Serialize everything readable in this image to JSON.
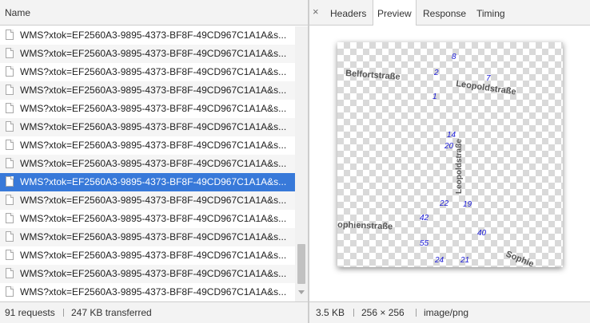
{
  "requests": {
    "header": "Name",
    "rows": [
      {
        "name": "WMS?xtok=EF2560A3-9895-4373-BF8F-49CD967C1A1A&s..."
      },
      {
        "name": "WMS?xtok=EF2560A3-9895-4373-BF8F-49CD967C1A1A&s..."
      },
      {
        "name": "WMS?xtok=EF2560A3-9895-4373-BF8F-49CD967C1A1A&s..."
      },
      {
        "name": "WMS?xtok=EF2560A3-9895-4373-BF8F-49CD967C1A1A&s..."
      },
      {
        "name": "WMS?xtok=EF2560A3-9895-4373-BF8F-49CD967C1A1A&s..."
      },
      {
        "name": "WMS?xtok=EF2560A3-9895-4373-BF8F-49CD967C1A1A&s..."
      },
      {
        "name": "WMS?xtok=EF2560A3-9895-4373-BF8F-49CD967C1A1A&s..."
      },
      {
        "name": "WMS?xtok=EF2560A3-9895-4373-BF8F-49CD967C1A1A&s..."
      },
      {
        "name": "WMS?xtok=EF2560A3-9895-4373-BF8F-49CD967C1A1A&s..."
      },
      {
        "name": "WMS?xtok=EF2560A3-9895-4373-BF8F-49CD967C1A1A&s..."
      },
      {
        "name": "WMS?xtok=EF2560A3-9895-4373-BF8F-49CD967C1A1A&s..."
      },
      {
        "name": "WMS?xtok=EF2560A3-9895-4373-BF8F-49CD967C1A1A&s..."
      },
      {
        "name": "WMS?xtok=EF2560A3-9895-4373-BF8F-49CD967C1A1A&s..."
      },
      {
        "name": "WMS?xtok=EF2560A3-9895-4373-BF8F-49CD967C1A1A&s..."
      },
      {
        "name": "WMS?xtok=EF2560A3-9895-4373-BF8F-49CD967C1A1A&s..."
      }
    ],
    "selected_index": 8
  },
  "status_left": {
    "requests": "91 requests",
    "transferred": "247 KB transferred"
  },
  "detail": {
    "close_icon": "×",
    "tabs": [
      {
        "label": "Headers"
      },
      {
        "label": "Preview"
      },
      {
        "label": "Response"
      },
      {
        "label": "Timing"
      }
    ],
    "active_tab": "Preview"
  },
  "preview": {
    "streets": [
      {
        "label": "Belfortstraße"
      },
      {
        "label": "Leopoldstraße"
      },
      {
        "label": "Leopoldstraße"
      },
      {
        "label": "ophienstraße"
      },
      {
        "label": "Sophie"
      }
    ],
    "house_numbers": [
      "8",
      "2",
      "7",
      "1",
      "14",
      "20",
      "22",
      "19",
      "42",
      "40",
      "55",
      "24",
      "21"
    ],
    "house_number_color": "#1a1ad6",
    "street_label_color": "#555555"
  },
  "status_right": {
    "size": "3.5 KB",
    "dimensions": "256 × 256",
    "mime": "image/png"
  },
  "colors": {
    "selected_row": "#3879d9",
    "panel_bg": "#f3f3f3",
    "border": "#cdcdcd"
  }
}
